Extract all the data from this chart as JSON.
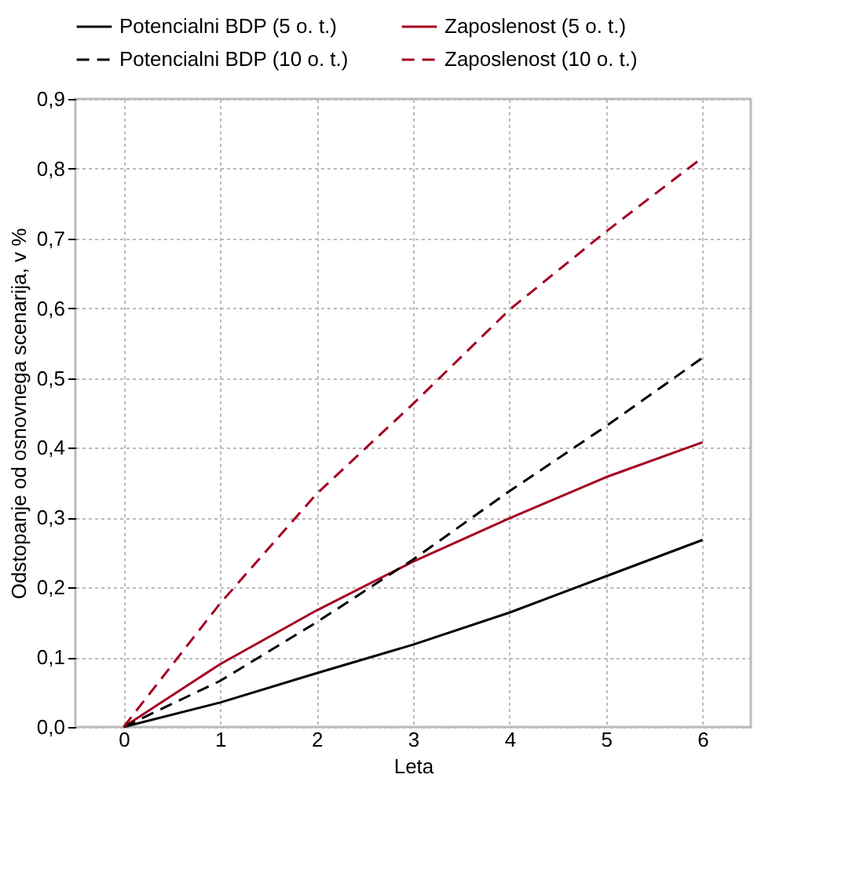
{
  "chart_data": {
    "type": "line",
    "xlabel": "Leta",
    "ylabel": "Odstopanje od osnovnega scenarija, v %",
    "categories": [
      "0",
      "1",
      "2",
      "3",
      "4",
      "5",
      "6"
    ],
    "series": [
      {
        "name": "Potencialni BDP (5 o. t.)",
        "color": "#000000",
        "line_style": "solid",
        "values": [
          0,
          0.035,
          0.077,
          0.118,
          0.164,
          0.216,
          0.268
        ]
      },
      {
        "name": "Zaposlenost (5 o. t.)",
        "color": "#a50021",
        "line_style": "solid",
        "values": [
          0,
          0.09,
          0.167,
          0.237,
          0.299,
          0.358,
          0.408
        ]
      },
      {
        "name": "Potencialni BDP (10 o. t.)",
        "color": "#000000",
        "line_style": "dashed",
        "values": [
          0,
          0.066,
          0.15,
          0.24,
          0.338,
          0.431,
          0.529
        ]
      },
      {
        "name": "Zaposlenost (10 o. t.)",
        "color": "#a50021",
        "line_style": "dashed",
        "values": [
          0,
          0.177,
          0.334,
          0.463,
          0.598,
          0.71,
          0.816
        ]
      }
    ],
    "ylim": [
      0,
      0.9
    ],
    "yticks": [
      {
        "value": 0,
        "label": "0,0"
      },
      {
        "value": 0.1,
        "label": "0,1"
      },
      {
        "value": 0.2,
        "label": "0,2"
      },
      {
        "value": 0.3,
        "label": "0,3"
      },
      {
        "value": 0.4,
        "label": "0,4"
      },
      {
        "value": 0.5,
        "label": "0,5"
      },
      {
        "value": 0.6,
        "label": "0,6"
      },
      {
        "value": 0.7,
        "label": "0,7"
      },
      {
        "value": 0.8,
        "label": "0,8"
      },
      {
        "value": 0.9,
        "label": "0,9"
      }
    ],
    "grid": true,
    "legend": "top",
    "marker": "none"
  }
}
